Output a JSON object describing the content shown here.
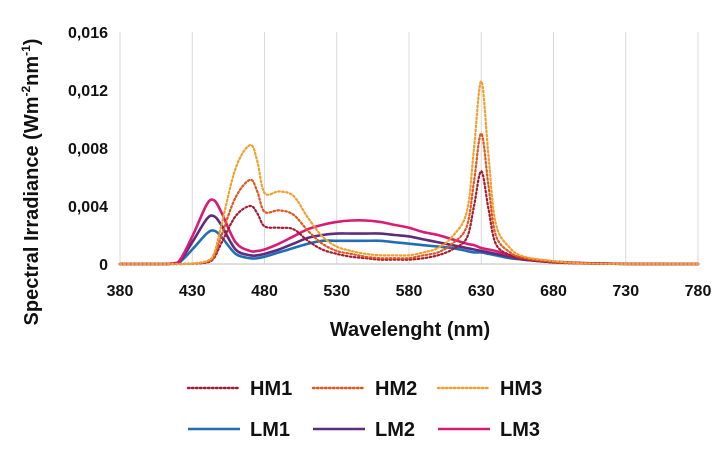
{
  "chart_data": {
    "type": "line",
    "title": "",
    "xlabel": "Wavelenght (nm)",
    "ylabel": {
      "main": "Spectral Irradiance (Wm",
      "sup1": "-2",
      "mid": "nm",
      "sup2": "-1",
      "end": ")"
    },
    "xlim": [
      380,
      780
    ],
    "ylim": [
      0,
      0.016
    ],
    "xticks": [
      380,
      430,
      480,
      530,
      580,
      630,
      680,
      730,
      780
    ],
    "yticks": [
      0,
      0.004,
      0.008,
      0.012,
      0.016
    ],
    "ytick_labels": [
      "0",
      "0,004",
      "0,008",
      "0,012",
      "0,016"
    ],
    "grid": "vertical",
    "legend_position": "bottom",
    "x": [
      380,
      390,
      400,
      410,
      420,
      430,
      440,
      445,
      450,
      460,
      470,
      475,
      480,
      490,
      500,
      510,
      520,
      530,
      540,
      550,
      560,
      570,
      580,
      590,
      600,
      610,
      620,
      625,
      630,
      635,
      640,
      650,
      660,
      680,
      700,
      730,
      760,
      780
    ],
    "series": [
      {
        "name": "HM1",
        "style": "dotted",
        "color": "#a51c30",
        "values": [
          0,
          0,
          0,
          0,
          0,
          2e-05,
          0.0001,
          0.0004,
          0.0014,
          0.0033,
          0.004,
          0.0035,
          0.0026,
          0.0025,
          0.0024,
          0.0016,
          0.001,
          0.0007,
          0.0005,
          0.0004,
          0.0003,
          0.0003,
          0.0003,
          0.0004,
          0.0006,
          0.001,
          0.0018,
          0.004,
          0.0064,
          0.0038,
          0.0014,
          0.0006,
          0.0003,
          0.0001,
          3e-05,
          0,
          0,
          0
        ]
      },
      {
        "name": "HM2",
        "style": "dotted",
        "color": "#e0561f",
        "values": [
          0,
          0,
          0,
          0,
          0,
          3e-05,
          0.00015,
          0.0005,
          0.0019,
          0.0046,
          0.0058,
          0.005,
          0.0036,
          0.0037,
          0.0034,
          0.0023,
          0.0014,
          0.0009,
          0.0007,
          0.0005,
          0.0004,
          0.0004,
          0.0004,
          0.0006,
          0.0008,
          0.0014,
          0.0026,
          0.0057,
          0.009,
          0.0054,
          0.002,
          0.0008,
          0.0004,
          0.00015,
          4e-05,
          0,
          0,
          0
        ]
      },
      {
        "name": "HM3",
        "style": "dotted",
        "color": "#f0a030",
        "values": [
          0,
          0,
          0,
          0,
          0,
          4e-05,
          0.0002,
          0.0007,
          0.0026,
          0.0066,
          0.0082,
          0.0071,
          0.0049,
          0.005,
          0.0047,
          0.0032,
          0.0019,
          0.0012,
          0.0009,
          0.0007,
          0.0006,
          0.0006,
          0.0006,
          0.0008,
          0.0011,
          0.0019,
          0.0036,
          0.008,
          0.0126,
          0.0075,
          0.0028,
          0.0011,
          0.0005,
          0.0002,
          5e-05,
          0,
          0,
          0
        ]
      },
      {
        "name": "LM1",
        "style": "solid",
        "color": "#1f6fb4",
        "values": [
          0,
          0,
          0,
          0,
          5e-05,
          0.001,
          0.0021,
          0.0023,
          0.0019,
          0.0007,
          0.0004,
          0.0004,
          0.0005,
          0.0008,
          0.0011,
          0.0014,
          0.0016,
          0.0016,
          0.0016,
          0.0016,
          0.0016,
          0.0015,
          0.0014,
          0.0013,
          0.0012,
          0.0011,
          0.0009,
          0.0008,
          0.0008,
          0.0007,
          0.0006,
          0.0004,
          0.0003,
          0.00013,
          5e-05,
          1e-05,
          0,
          0
        ]
      },
      {
        "name": "LM2",
        "style": "solid",
        "color": "#5e2b7e",
        "values": [
          0,
          0,
          0,
          0,
          7e-05,
          0.0015,
          0.0031,
          0.0033,
          0.0027,
          0.001,
          0.0006,
          0.0006,
          0.0007,
          0.001,
          0.0014,
          0.0018,
          0.002,
          0.0021,
          0.0021,
          0.0021,
          0.0021,
          0.002,
          0.0019,
          0.0017,
          0.0015,
          0.0013,
          0.0011,
          0.001,
          0.0009,
          0.0008,
          0.0007,
          0.0005,
          0.0003,
          0.00015,
          6e-05,
          1e-05,
          0,
          0
        ]
      },
      {
        "name": "LM3",
        "style": "solid",
        "color": "#d81b73",
        "values": [
          0,
          0,
          0,
          0,
          0.0001,
          0.0019,
          0.0041,
          0.0044,
          0.0036,
          0.0015,
          0.0009,
          0.0009,
          0.001,
          0.0014,
          0.0019,
          0.0024,
          0.0027,
          0.0029,
          0.003,
          0.003,
          0.0029,
          0.0027,
          0.0025,
          0.0022,
          0.002,
          0.0017,
          0.0014,
          0.0013,
          0.0011,
          0.001,
          0.0009,
          0.0006,
          0.0004,
          0.00017,
          7e-05,
          1e-05,
          0,
          0
        ]
      }
    ]
  }
}
